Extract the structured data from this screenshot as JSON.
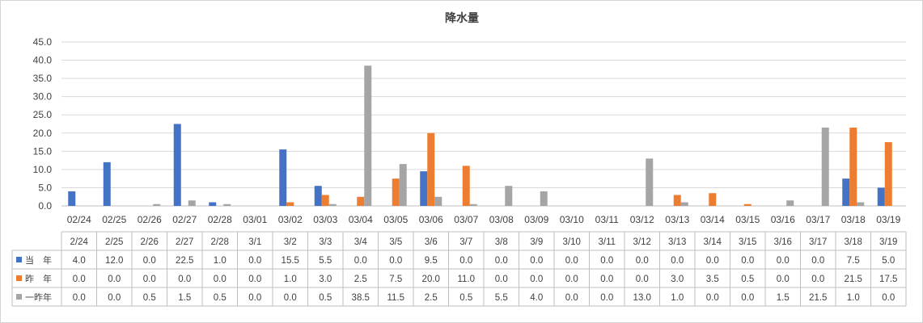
{
  "colors": {
    "当年": "#4472C4",
    "昨年": "#ED7D31",
    "一昨年": "#A5A5A5"
  },
  "chart_data": {
    "type": "bar",
    "title": "降水量",
    "xlabel": "",
    "ylabel": "",
    "ylim": [
      0,
      45
    ],
    "yticks": [
      "0.0",
      "5.0",
      "10.0",
      "15.0",
      "20.0",
      "25.0",
      "30.0",
      "35.0",
      "40.0",
      "45.0"
    ],
    "grid": true,
    "legend_placement": "data-table",
    "categories": [
      "02/24",
      "02/25",
      "02/26",
      "02/27",
      "02/28",
      "03/01",
      "03/02",
      "03/03",
      "03/04",
      "03/05",
      "03/06",
      "03/07",
      "03/08",
      "03/09",
      "03/10",
      "03/11",
      "03/12",
      "03/13",
      "03/14",
      "03/15",
      "03/16",
      "03/17",
      "03/18",
      "03/19"
    ],
    "table_header": [
      "2/24",
      "2/25",
      "2/26",
      "2/27",
      "2/28",
      "3/1",
      "3/2",
      "3/3",
      "3/4",
      "3/5",
      "3/6",
      "3/7",
      "3/8",
      "3/9",
      "3/10",
      "3/11",
      "3/12",
      "3/13",
      "3/14",
      "3/15",
      "3/16",
      "3/17",
      "3/18",
      "3/19"
    ],
    "series": [
      {
        "name": "当　年",
        "values": [
          4.0,
          12.0,
          0.0,
          22.5,
          1.0,
          0.0,
          15.5,
          5.5,
          0.0,
          0.0,
          9.5,
          0.0,
          0.0,
          0.0,
          0.0,
          0.0,
          0.0,
          0.0,
          0.0,
          0.0,
          0.0,
          0.0,
          7.5,
          5.0
        ]
      },
      {
        "name": "昨　年",
        "values": [
          0.0,
          0.0,
          0.0,
          0.0,
          0.0,
          0.0,
          1.0,
          3.0,
          2.5,
          7.5,
          20.0,
          11.0,
          0.0,
          0.0,
          0.0,
          0.0,
          0.0,
          3.0,
          3.5,
          0.5,
          0.0,
          0.0,
          21.5,
          17.5
        ]
      },
      {
        "name": "一昨年",
        "values": [
          0.0,
          0.0,
          0.5,
          1.5,
          0.5,
          0.0,
          0.0,
          0.5,
          38.5,
          11.5,
          2.5,
          0.5,
          5.5,
          4.0,
          0.0,
          0.0,
          13.0,
          1.0,
          0.0,
          0.0,
          1.5,
          21.5,
          1.0,
          0.0
        ]
      }
    ]
  }
}
